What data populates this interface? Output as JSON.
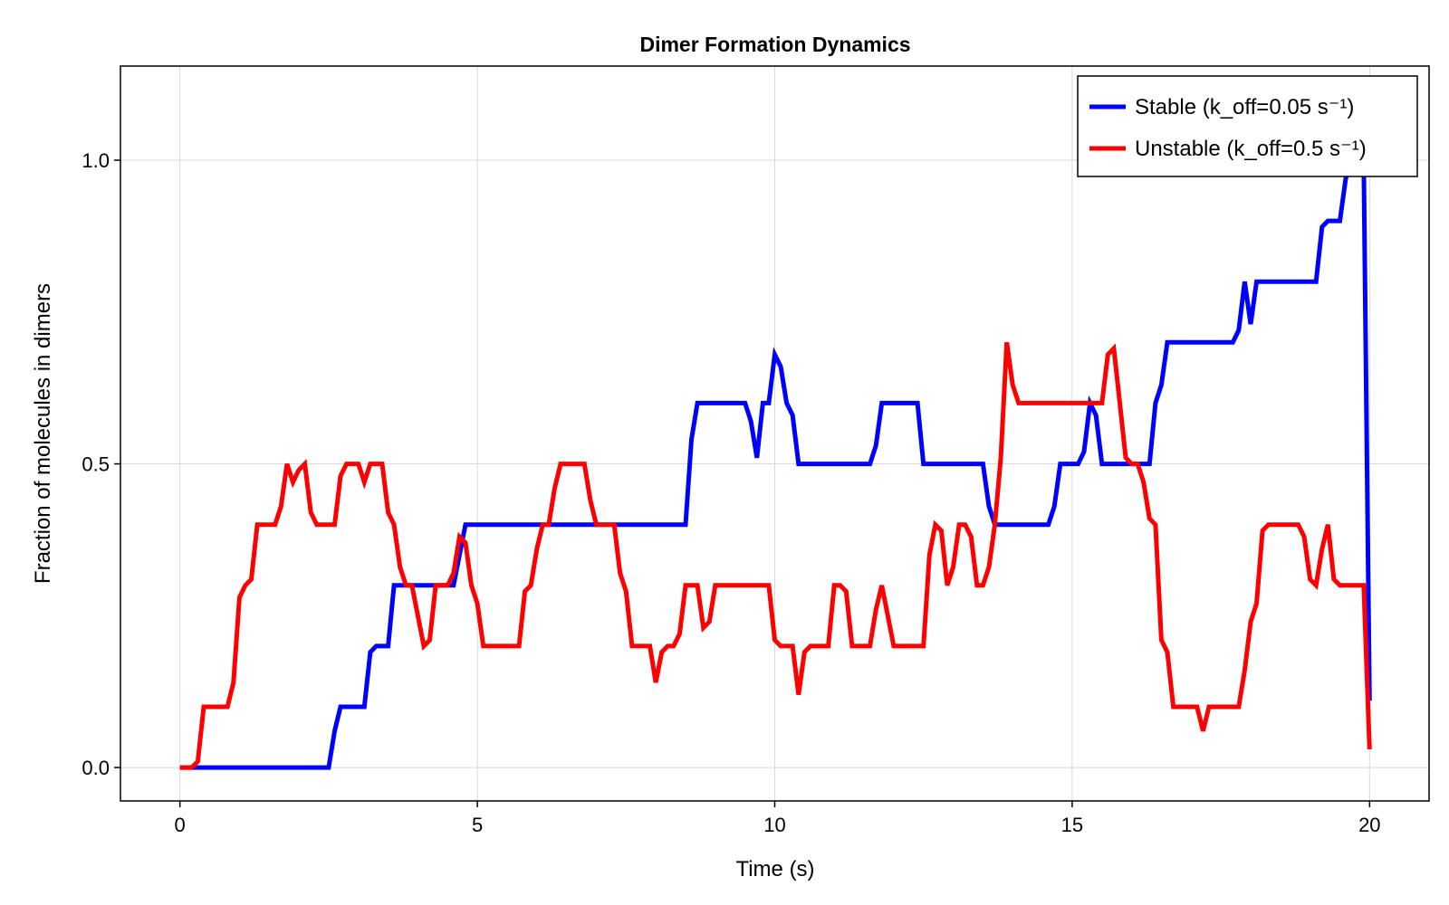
{
  "chart_data": {
    "type": "line",
    "title": "Dimer Formation Dynamics",
    "xlabel": "Time (s)",
    "ylabel": "Fraction of molecules in dimers",
    "xlim": [
      -1,
      21
    ],
    "ylim": [
      -0.055,
      1.155
    ],
    "xticks": [
      0,
      5,
      10,
      15,
      20
    ],
    "xtick_labels": [
      "0",
      "5",
      "10",
      "15",
      "20"
    ],
    "yticks": [
      0.0,
      0.5,
      1.0
    ],
    "ytick_labels": [
      "0.0",
      "0.5",
      "1.0"
    ],
    "grid": true,
    "legend_position": "top-right",
    "series": [
      {
        "name": "Stable (k_off=0.05 s⁻¹)",
        "color": "#0000ff",
        "points": [
          [
            0,
            0
          ],
          [
            2.5,
            0
          ],
          [
            2.6,
            0.06
          ],
          [
            2.7,
            0.1
          ],
          [
            3.1,
            0.1
          ],
          [
            3.2,
            0.19
          ],
          [
            3.3,
            0.2
          ],
          [
            3.5,
            0.2
          ],
          [
            3.6,
            0.3
          ],
          [
            4.6,
            0.3
          ],
          [
            4.8,
            0.4
          ],
          [
            8.5,
            0.4
          ],
          [
            8.6,
            0.54
          ],
          [
            8.7,
            0.6
          ],
          [
            9.5,
            0.6
          ],
          [
            9.6,
            0.57
          ],
          [
            9.7,
            0.51
          ],
          [
            9.8,
            0.6
          ],
          [
            9.9,
            0.6
          ],
          [
            10.0,
            0.68
          ],
          [
            10.1,
            0.66
          ],
          [
            10.2,
            0.6
          ],
          [
            10.3,
            0.58
          ],
          [
            10.4,
            0.5
          ],
          [
            11.6,
            0.5
          ],
          [
            11.7,
            0.53
          ],
          [
            11.8,
            0.6
          ],
          [
            12.4,
            0.6
          ],
          [
            12.5,
            0.5
          ],
          [
            13.5,
            0.5
          ],
          [
            13.6,
            0.43
          ],
          [
            13.7,
            0.4
          ],
          [
            14.6,
            0.4
          ],
          [
            14.7,
            0.43
          ],
          [
            14.8,
            0.5
          ],
          [
            15.1,
            0.5
          ],
          [
            15.2,
            0.52
          ],
          [
            15.3,
            0.6
          ],
          [
            15.4,
            0.58
          ],
          [
            15.5,
            0.5
          ],
          [
            16.3,
            0.5
          ],
          [
            16.4,
            0.6
          ],
          [
            16.5,
            0.63
          ],
          [
            16.6,
            0.7
          ],
          [
            17.7,
            0.7
          ],
          [
            17.8,
            0.72
          ],
          [
            17.9,
            0.8
          ],
          [
            18.0,
            0.73
          ],
          [
            18.1,
            0.8
          ],
          [
            19.1,
            0.8
          ],
          [
            19.2,
            0.89
          ],
          [
            19.3,
            0.9
          ],
          [
            19.5,
            0.9
          ],
          [
            19.6,
            0.97
          ],
          [
            19.7,
            1.0
          ],
          [
            19.9,
            1.0
          ],
          [
            20.0,
            0.11
          ]
        ]
      },
      {
        "name": "Unstable (k_off=0.5 s⁻¹)",
        "color": "#ff0000",
        "points": [
          [
            0,
            0
          ],
          [
            0.2,
            0
          ],
          [
            0.3,
            0.01
          ],
          [
            0.4,
            0.1
          ],
          [
            0.8,
            0.1
          ],
          [
            0.9,
            0.14
          ],
          [
            1.0,
            0.28
          ],
          [
            1.1,
            0.3
          ],
          [
            1.2,
            0.31
          ],
          [
            1.3,
            0.4
          ],
          [
            1.6,
            0.4
          ],
          [
            1.7,
            0.43
          ],
          [
            1.8,
            0.5
          ],
          [
            1.9,
            0.47
          ],
          [
            2.0,
            0.49
          ],
          [
            2.1,
            0.5
          ],
          [
            2.2,
            0.42
          ],
          [
            2.3,
            0.4
          ],
          [
            2.6,
            0.4
          ],
          [
            2.7,
            0.48
          ],
          [
            2.8,
            0.5
          ],
          [
            3.0,
            0.5
          ],
          [
            3.1,
            0.47
          ],
          [
            3.2,
            0.5
          ],
          [
            3.4,
            0.5
          ],
          [
            3.5,
            0.42
          ],
          [
            3.6,
            0.4
          ],
          [
            3.7,
            0.33
          ],
          [
            3.8,
            0.3
          ],
          [
            3.9,
            0.3
          ],
          [
            4.0,
            0.25
          ],
          [
            4.1,
            0.2
          ],
          [
            4.2,
            0.21
          ],
          [
            4.3,
            0.3
          ],
          [
            4.5,
            0.3
          ],
          [
            4.6,
            0.32
          ],
          [
            4.7,
            0.38
          ],
          [
            4.8,
            0.37
          ],
          [
            4.9,
            0.3
          ],
          [
            5.0,
            0.27
          ],
          [
            5.1,
            0.2
          ],
          [
            5.7,
            0.2
          ],
          [
            5.8,
            0.29
          ],
          [
            5.9,
            0.3
          ],
          [
            6.0,
            0.36
          ],
          [
            6.1,
            0.4
          ],
          [
            6.2,
            0.4
          ],
          [
            6.3,
            0.46
          ],
          [
            6.4,
            0.5
          ],
          [
            6.8,
            0.5
          ],
          [
            6.9,
            0.44
          ],
          [
            7.0,
            0.4
          ],
          [
            7.3,
            0.4
          ],
          [
            7.4,
            0.32
          ],
          [
            7.5,
            0.29
          ],
          [
            7.6,
            0.2
          ],
          [
            7.9,
            0.2
          ],
          [
            8.0,
            0.14
          ],
          [
            8.1,
            0.19
          ],
          [
            8.2,
            0.2
          ],
          [
            8.3,
            0.2
          ],
          [
            8.4,
            0.22
          ],
          [
            8.5,
            0.3
          ],
          [
            8.7,
            0.3
          ],
          [
            8.8,
            0.23
          ],
          [
            8.9,
            0.24
          ],
          [
            9.0,
            0.3
          ],
          [
            9.9,
            0.3
          ],
          [
            10.0,
            0.21
          ],
          [
            10.1,
            0.2
          ],
          [
            10.3,
            0.2
          ],
          [
            10.4,
            0.12
          ],
          [
            10.5,
            0.19
          ],
          [
            10.6,
            0.2
          ],
          [
            10.9,
            0.2
          ],
          [
            11.0,
            0.3
          ],
          [
            11.1,
            0.3
          ],
          [
            11.2,
            0.29
          ],
          [
            11.3,
            0.2
          ],
          [
            11.6,
            0.2
          ],
          [
            11.7,
            0.26
          ],
          [
            11.8,
            0.3
          ],
          [
            11.9,
            0.25
          ],
          [
            12.0,
            0.2
          ],
          [
            12.5,
            0.2
          ],
          [
            12.6,
            0.35
          ],
          [
            12.7,
            0.4
          ],
          [
            12.8,
            0.39
          ],
          [
            12.9,
            0.3
          ],
          [
            13.0,
            0.33
          ],
          [
            13.1,
            0.4
          ],
          [
            13.2,
            0.4
          ],
          [
            13.3,
            0.38
          ],
          [
            13.4,
            0.3
          ],
          [
            13.5,
            0.3
          ],
          [
            13.6,
            0.33
          ],
          [
            13.7,
            0.4
          ],
          [
            13.8,
            0.51
          ],
          [
            13.9,
            0.7
          ],
          [
            14.0,
            0.63
          ],
          [
            14.1,
            0.6
          ],
          [
            15.4,
            0.6
          ],
          [
            15.5,
            0.6
          ],
          [
            15.6,
            0.68
          ],
          [
            15.7,
            0.69
          ],
          [
            15.8,
            0.6
          ],
          [
            15.9,
            0.51
          ],
          [
            16.0,
            0.5
          ],
          [
            16.1,
            0.5
          ],
          [
            16.2,
            0.47
          ],
          [
            16.3,
            0.41
          ],
          [
            16.4,
            0.4
          ],
          [
            16.5,
            0.21
          ],
          [
            16.6,
            0.19
          ],
          [
            16.7,
            0.1
          ],
          [
            17.1,
            0.1
          ],
          [
            17.2,
            0.06
          ],
          [
            17.3,
            0.1
          ],
          [
            17.8,
            0.1
          ],
          [
            17.9,
            0.16
          ],
          [
            18.0,
            0.24
          ],
          [
            18.1,
            0.27
          ],
          [
            18.2,
            0.39
          ],
          [
            18.3,
            0.4
          ],
          [
            18.8,
            0.4
          ],
          [
            18.9,
            0.38
          ],
          [
            19.0,
            0.31
          ],
          [
            19.1,
            0.3
          ],
          [
            19.2,
            0.36
          ],
          [
            19.3,
            0.4
          ],
          [
            19.4,
            0.31
          ],
          [
            19.5,
            0.3
          ],
          [
            19.9,
            0.3
          ],
          [
            20.0,
            0.03
          ]
        ]
      }
    ]
  }
}
